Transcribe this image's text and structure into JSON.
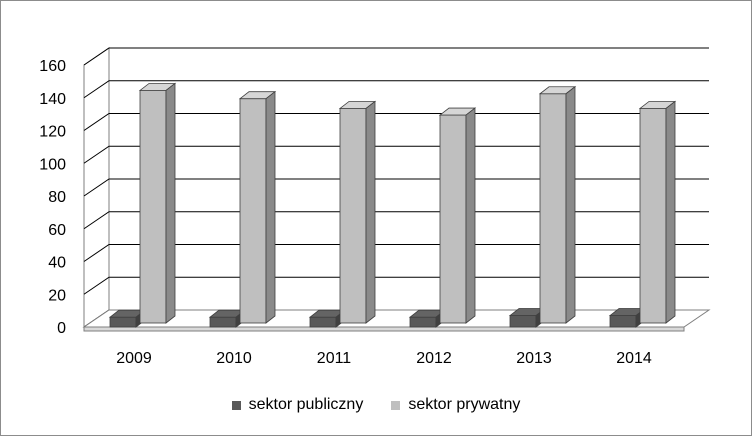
{
  "chart_data": {
    "type": "bar",
    "categories": [
      "2009",
      "2010",
      "2011",
      "2012",
      "2013",
      "2014"
    ],
    "series": [
      {
        "name": "sektor publiczny",
        "values": [
          6,
          6,
          6,
          6,
          7,
          7
        ],
        "color": "#595959"
      },
      {
        "name": "sektor prywatny",
        "values": [
          142,
          137,
          131,
          127,
          140,
          131
        ],
        "color": "#bfbfbf"
      }
    ],
    "ylim": [
      0,
      160
    ],
    "yticks": [
      "0",
      "20",
      "40",
      "60",
      "80",
      "100",
      "120",
      "140",
      "160"
    ],
    "grid": true,
    "legend_position": "bottom",
    "style": "3d"
  }
}
